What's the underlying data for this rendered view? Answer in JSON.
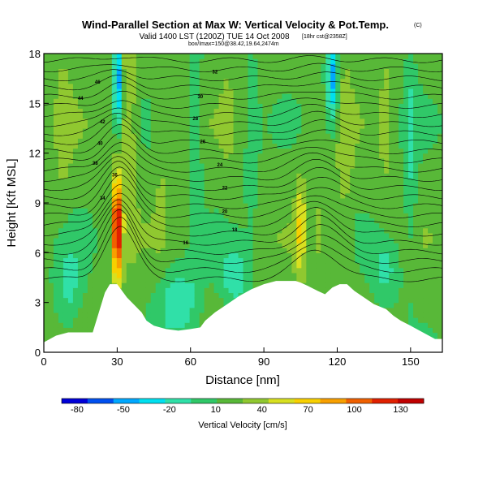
{
  "chart_data": {
    "type": "heatmap",
    "title": "Wind-Parallel Section at Max W: Vertical Velocity & Pot.Temp.",
    "title_mark": "(C)",
    "subtitle": "Valid 1400 LST (1200Z) TUE 14 Oct 2008",
    "subtitle_extra": "[18hr cst@2358Z]",
    "caption": "box/Imax=150@38.42,19.64,2474m",
    "xlabel": "Distance [nm]",
    "ylabel": "Height [Kft MSL]",
    "xlim": [
      0,
      163
    ],
    "ylim": [
      0,
      18
    ],
    "xticks": [
      0,
      30,
      60,
      90,
      120,
      150
    ],
    "yticks": [
      0,
      3,
      6,
      9,
      12,
      15,
      18
    ],
    "colorbar": {
      "label": "Vertical Velocity [cm/s]",
      "levels": [
        -80,
        -50,
        -20,
        10,
        40,
        70,
        100,
        130
      ],
      "range": [
        -90,
        145
      ],
      "colors": [
        "#0000d8",
        "#0050f0",
        "#00a8ff",
        "#00e0f0",
        "#30e0a8",
        "#30c868",
        "#58b838",
        "#90c830",
        "#d8e020",
        "#f8d000",
        "#f8a000",
        "#f06000",
        "#e02000",
        "#c00000"
      ]
    },
    "terrain": {
      "x": [
        0,
        5,
        10,
        20,
        25,
        27,
        30,
        34,
        36,
        38,
        40,
        42,
        45,
        50,
        55,
        60,
        64,
        66,
        70,
        75,
        80,
        85,
        90,
        95,
        100,
        103,
        105,
        108,
        112,
        115,
        118,
        121,
        124,
        127,
        130,
        135,
        140,
        143,
        146,
        150,
        155,
        160,
        163
      ],
      "y": [
        0.6,
        1.0,
        1.2,
        1.2,
        3.6,
        4.1,
        4.1,
        3.3,
        3.0,
        2.7,
        2.4,
        1.9,
        1.6,
        1.4,
        1.3,
        1.4,
        1.5,
        1.9,
        2.4,
        2.9,
        3.4,
        3.8,
        4.1,
        4.3,
        4.3,
        4.3,
        4.2,
        4.0,
        3.7,
        3.5,
        3.9,
        4.1,
        4.1,
        3.7,
        3.4,
        2.9,
        2.6,
        2.2,
        1.9,
        1.6,
        1.2,
        0.8,
        0.8
      ]
    },
    "plumes": [
      {
        "x": 30,
        "y": 7.5,
        "sx": 1.4,
        "sy": 2.2,
        "w": 140
      },
      {
        "x": 35,
        "y": 13.5,
        "sx": 2.2,
        "sy": 4.5,
        "w": 42
      },
      {
        "x": 30,
        "y": 16.5,
        "sx": 0.9,
        "sy": 2.0,
        "w": -85
      },
      {
        "x": 105,
        "y": 7.5,
        "sx": 1.5,
        "sy": 2.0,
        "w": 60
      },
      {
        "x": 112,
        "y": 7.5,
        "sx": 1.5,
        "sy": 1.8,
        "w": 30
      },
      {
        "x": 118,
        "y": 16.5,
        "sx": 1.8,
        "sy": 2.0,
        "w": -55
      },
      {
        "x": 123,
        "y": 12.0,
        "sx": 2.2,
        "sy": 5.0,
        "w": 35
      },
      {
        "x": 48,
        "y": 13.0,
        "sx": 2.0,
        "sy": 4.5,
        "w": 30
      },
      {
        "x": 62,
        "y": 12.5,
        "sx": 2.0,
        "sy": 4.5,
        "w": -10
      },
      {
        "x": 75,
        "y": 14.5,
        "sx": 1.8,
        "sy": 3.5,
        "w": 25
      },
      {
        "x": 85,
        "y": 13.0,
        "sx": 2.0,
        "sy": 4.0,
        "w": -5
      },
      {
        "x": 140,
        "y": 14.0,
        "sx": 2.2,
        "sy": 4.5,
        "w": 30
      },
      {
        "x": 150,
        "y": 12.0,
        "sx": 2.0,
        "sy": 5.0,
        "w": -10
      },
      {
        "x": 8,
        "y": 14.0,
        "sx": 2.5,
        "sy": 5.0,
        "w": 30
      },
      {
        "x": 55,
        "y": 3.0,
        "sx": 6.0,
        "sy": 1.5,
        "w": -25
      },
      {
        "x": 78,
        "y": 4.5,
        "sx": 4.0,
        "sy": 1.3,
        "w": -20
      },
      {
        "x": 10,
        "y": 4.0,
        "sx": 4.0,
        "sy": 2.0,
        "w": -15
      },
      {
        "x": 140,
        "y": 5.0,
        "sx": 4.0,
        "sy": 1.5,
        "w": -15
      }
    ],
    "contour_labels": [
      "46",
      "44",
      "42",
      "40",
      "38",
      "36",
      "34",
      "32",
      "30",
      "28",
      "26",
      "24",
      "22",
      "20",
      "18",
      "16"
    ]
  }
}
